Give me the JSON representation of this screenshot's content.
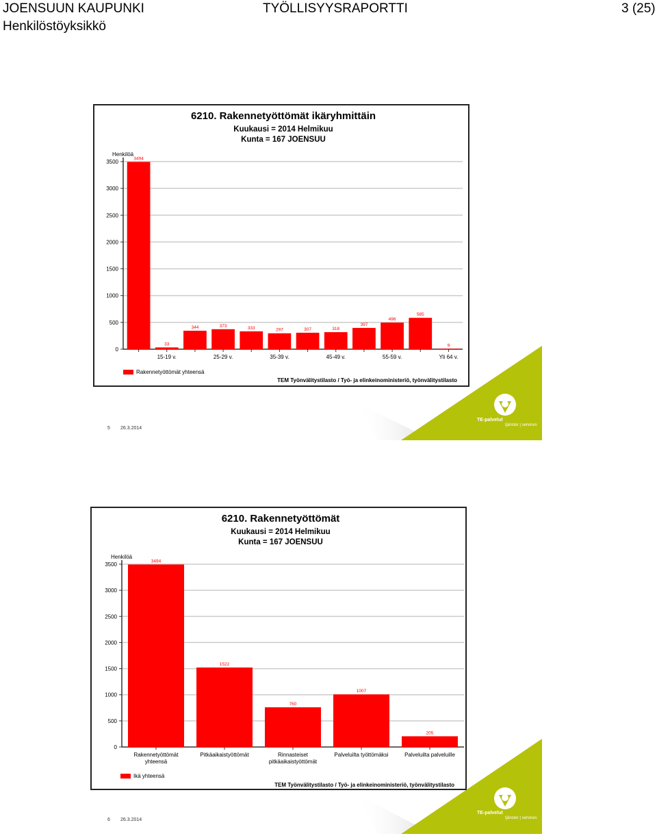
{
  "header": {
    "organization": "JOENSUUN KAUPUNKI",
    "department": "Henkilöstöyksikkö",
    "report_title": "TYÖLLISYYSRAPORTTI",
    "page": "3 (25)"
  },
  "slides": [
    {
      "footer_page": "5",
      "footer_date": "26.3.2014",
      "logo_text": "TE-palvelut",
      "logo_subtext": "tjänster | services"
    },
    {
      "footer_page": "6",
      "footer_date": "26.3.2014",
      "logo_text": "TE-palvelut",
      "logo_subtext": "tjänster | services"
    }
  ],
  "chart_data": [
    {
      "type": "bar",
      "title": "6210. Rakennetyöttömät ikäryhmittäin",
      "subtitle_1": "Kuukausi = 2014 Helmikuu",
      "subtitle_2": "Kunta = 167 JOENSUU",
      "ylabel": "Henkilöä",
      "ylim": [
        0,
        3500
      ],
      "yticks": [
        0,
        500,
        1000,
        1500,
        2000,
        2500,
        3000,
        3500
      ],
      "grid": true,
      "categories": [
        "",
        "15-19 v.",
        "",
        "25-29 v.",
        "",
        "35-39 v.",
        "",
        "45-49 v.",
        "",
        "55-59 v.",
        "",
        "Yli 64 v."
      ],
      "series": [
        {
          "name": "Rakennetyöttömät yhteensä",
          "values": [
            3494,
            33,
            344,
            373,
            333,
            297,
            307,
            318,
            397,
            496,
            585,
            9
          ]
        }
      ],
      "bar_color": "#ff0000",
      "legend_position": "bottom-left",
      "source": "TEM Työnvälitystilasto / Työ- ja elinkeinoministeriö, työnvälitystilasto"
    },
    {
      "type": "bar",
      "title": "6210. Rakennetyöttömät",
      "subtitle_1": "Kuukausi = 2014 Helmikuu",
      "subtitle_2": "Kunta = 167 JOENSUU",
      "ylabel": "Henkilöä",
      "ylim": [
        0,
        3500
      ],
      "yticks": [
        0,
        500,
        1000,
        1500,
        2000,
        2500,
        3000,
        3500
      ],
      "grid": true,
      "categories": [
        [
          "Rakennetyöttömät",
          "yhteensä"
        ],
        [
          "Pitkäaikaistyöttömät"
        ],
        [
          "Rinnasteiset",
          "pitkäaikaistyöttömät"
        ],
        [
          "Palveluilta työttömäksi"
        ],
        [
          "Palveluilta palveluille"
        ]
      ],
      "series": [
        {
          "name": "Ikä yhteensä",
          "values": [
            3494,
            1522,
            760,
            1007,
            205
          ]
        }
      ],
      "bar_color": "#ff0000",
      "legend_position": "bottom-left",
      "source": "TEM Työnvälitystilasto / Työ- ja elinkeinoministeriö, työnvälitystilasto"
    }
  ],
  "colors": {
    "bar": "#ff0000",
    "grid": "#cccccc",
    "accent_green": "#b5c20a"
  }
}
